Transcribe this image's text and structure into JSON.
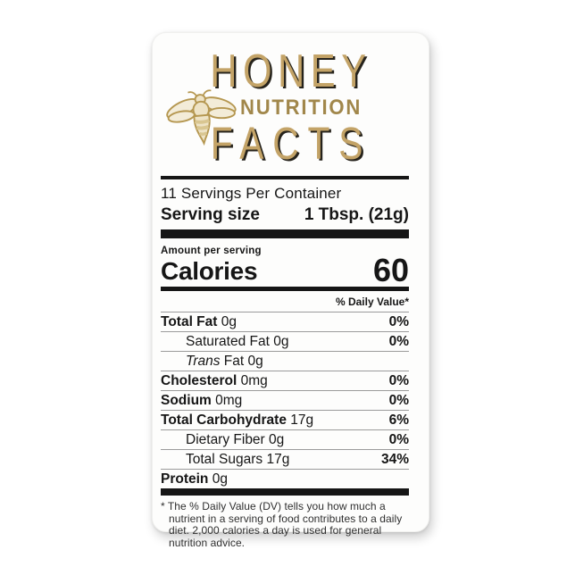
{
  "header": {
    "title": "HONEY",
    "subtitle": "NUTRITION",
    "title2": "FACTS",
    "icon": "bee-icon"
  },
  "panel": {
    "servings_per_container": "11 Servings Per Container",
    "serving_size_label": "Serving size",
    "serving_size_value": "1 Tbsp. (21g)",
    "amount_per_serving": "Amount per serving",
    "calories_label": "Calories",
    "calories_value": "60",
    "daily_value_header": "% Daily Value*",
    "rows": [
      {
        "name": "Total Fat",
        "amount": "0g",
        "dv": "0%",
        "style": "bold"
      },
      {
        "name": "Saturated Fat",
        "amount": "0g",
        "dv": "0%",
        "style": "indent"
      },
      {
        "name": "Trans",
        "name_rest": " Fat",
        "amount": "0g",
        "dv": "",
        "style": "indent-italic"
      },
      {
        "name": "Cholesterol",
        "amount": "0mg",
        "dv": "0%",
        "style": "bold"
      },
      {
        "name": "Sodium",
        "amount": "0mg",
        "dv": "0%",
        "style": "bold"
      },
      {
        "name": "Total Carbohydrate",
        "amount": "17g",
        "dv": "6%",
        "style": "bold"
      },
      {
        "name": "Dietary Fiber",
        "amount": "0g",
        "dv": "0%",
        "style": "indent"
      },
      {
        "name": "Total Sugars",
        "amount": "17g",
        "dv": "34%",
        "style": "indent"
      },
      {
        "name": "Protein",
        "amount": "0g",
        "dv": "",
        "style": "bold"
      }
    ],
    "footnote": "* The % Daily Value (DV) tells you how much a nutrient in a serving of food contributes to a daily diet. 2,000 calories a day is used for general nutrition advice."
  },
  "colors": {
    "gold": "#c3a367",
    "gold_dark": "#a1874b",
    "ink": "#161616",
    "heading_shadow": "#26231c",
    "hairline": "#9b9b9b",
    "label_background": "#fdfdfc"
  }
}
